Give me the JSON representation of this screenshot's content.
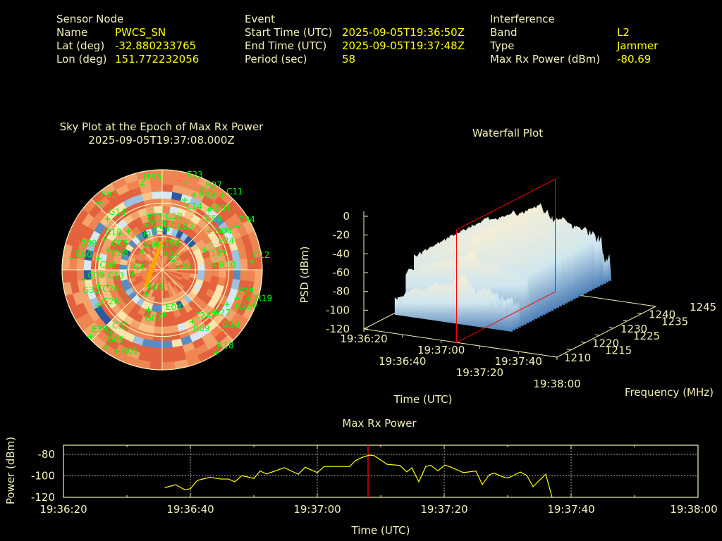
{
  "header": {
    "sensor": {
      "title": "Sensor Node",
      "name_label": "Name",
      "name": "PWCS_SN",
      "lat_label": "Lat (deg)",
      "lat": "-32.880233765",
      "lon_label": "Lon (deg)",
      "lon": "151.772232056"
    },
    "event": {
      "title": "Event",
      "start_label": "Start Time (UTC)",
      "start": "2025-09-05T19:36:50Z",
      "end_label": "End Time (UTC)",
      "end": "2025-09-05T19:37:48Z",
      "period_label": "Period (sec)",
      "period": "58"
    },
    "interference": {
      "title": "Interference",
      "band_label": "Band",
      "band": "L2",
      "type_label": "Type",
      "type": "Jammer",
      "power_label": "Max Rx Power (dBm)",
      "power": "-80.69"
    }
  },
  "colors": {
    "label": "#f4efb8",
    "value": "#ffff00",
    "satellite": "#00ff00",
    "track": "#ffa500",
    "epoch_marker": "#ff0000",
    "line": "#ffff00"
  },
  "chart_data": [
    {
      "type": "polar-heatmap",
      "title": "Sky Plot at the Epoch of Max Rx Power",
      "subtitle": "2025-09-05T19:37:08.000Z",
      "elevation_rings": [
        0,
        30,
        60
      ],
      "azimuth_lines": [
        0,
        45,
        90,
        135,
        180,
        225,
        270,
        315
      ],
      "jammer_track": [
        {
          "az": 357,
          "el": 66
        },
        {
          "az": 226,
          "el": 70
        }
      ],
      "satellites": [
        {
          "id": "J195",
          "az": 347,
          "el": 11
        },
        {
          "id": "E23",
          "az": 15,
          "el": 8
        },
        {
          "id": "R27",
          "az": 26,
          "el": 9
        },
        {
          "id": "R08",
          "az": 23,
          "el": 17
        },
        {
          "id": "C11",
          "az": 39,
          "el": 4
        },
        {
          "id": "C14",
          "az": 18,
          "el": 24
        },
        {
          "id": "E01",
          "az": 38,
          "el": 20
        },
        {
          "id": "C58",
          "az": 38,
          "el": 22
        },
        {
          "id": "G22",
          "az": 317,
          "el": 7
        },
        {
          "id": "G14",
          "az": 313,
          "el": 23
        },
        {
          "id": "E12",
          "az": 340,
          "el": 47
        },
        {
          "id": "C59",
          "az": 348,
          "el": 47
        },
        {
          "id": "C50",
          "az": 3,
          "el": 48
        },
        {
          "id": "C03",
          "az": 13,
          "el": 47
        },
        {
          "id": "G04",
          "az": 51,
          "el": 35
        },
        {
          "id": "E24",
          "az": 58,
          "el": 22
        },
        {
          "id": "C34",
          "az": 60,
          "el": 12
        },
        {
          "id": "I199",
          "az": 319,
          "el": 44
        },
        {
          "id": "C06",
          "az": 310,
          "el": 40
        },
        {
          "id": "J209",
          "az": 283,
          "el": 12
        },
        {
          "id": "C10",
          "az": 298,
          "el": 31
        },
        {
          "id": "C08",
          "az": 290,
          "el": 38
        },
        {
          "id": "C23",
          "az": 280,
          "el": 32
        },
        {
          "id": "C60",
          "az": 277,
          "el": 8
        },
        {
          "id": "C13",
          "az": 275,
          "el": 43
        },
        {
          "id": "C09",
          "az": 263,
          "el": 19
        },
        {
          "id": "C41",
          "az": 262,
          "el": 63
        },
        {
          "id": "E14",
          "az": 313,
          "el": 66
        },
        {
          "id": "J196",
          "az": 344,
          "el": 66
        },
        {
          "id": "R07",
          "az": 17,
          "el": 63
        },
        {
          "id": "G09",
          "az": 49,
          "el": 77
        },
        {
          "id": "J193",
          "az": 65,
          "el": 48
        },
        {
          "id": "R10",
          "az": 85,
          "el": 43
        },
        {
          "id": "C12",
          "az": 85,
          "el": 9
        },
        {
          "id": "R19",
          "az": 111,
          "el": 1
        },
        {
          "id": "R26",
          "az": 108,
          "el": 8
        },
        {
          "id": "E26",
          "az": 111,
          "el": 18
        },
        {
          "id": "G27",
          "az": 118,
          "el": 24
        },
        {
          "id": "C24",
          "az": 129,
          "el": 29
        },
        {
          "id": "R09",
          "az": 150,
          "el": 36
        },
        {
          "id": "G18",
          "az": 136,
          "el": 13
        },
        {
          "id": "R18",
          "az": 147,
          "el": 1
        },
        {
          "id": "E04",
          "az": 177,
          "el": 50
        },
        {
          "id": "G07",
          "az": 199,
          "el": 52
        },
        {
          "id": "R05",
          "az": 213,
          "el": 64
        },
        {
          "id": "C26",
          "az": 256,
          "el": 31
        },
        {
          "id": "G30",
          "az": 254,
          "el": 39
        },
        {
          "id": "G26",
          "az": 241,
          "el": 24
        },
        {
          "id": "E36",
          "az": 227,
          "el": 2
        },
        {
          "id": "C32",
          "az": 219,
          "el": 17
        },
        {
          "id": "G05",
          "az": 216,
          "el": 4
        },
        {
          "id": "R01",
          "az": 209,
          "el": 6
        }
      ]
    },
    {
      "type": "surface-3d",
      "title": "Waterfall Plot",
      "xlabel": "Time (UTC)",
      "ylabel": "Frequency (MHz)",
      "zlabel": "PSD (dBm)",
      "xticks": [
        "19:36:20",
        "19:36:40",
        "19:37:00",
        "19:37:20",
        "19:37:40",
        "19:38:00"
      ],
      "yticks": [
        "1210",
        "1215",
        "1220",
        "1225",
        "1230",
        "1235",
        "1240",
        "1245"
      ],
      "zticks": [
        "0",
        "-20",
        "-40",
        "-60",
        "-80",
        "-100",
        "-120"
      ],
      "zlim": [
        -120,
        0
      ],
      "epoch_plane": "19:37:08"
    },
    {
      "type": "line",
      "title": "Max Rx Power",
      "xlabel": "Time (UTC)",
      "ylabel": "Power (dBm)",
      "xticks": [
        "19:36:20",
        "19:36:40",
        "19:37:00",
        "19:37:20",
        "19:37:40",
        "19:38:00"
      ],
      "yticks": [
        "-80",
        "-100",
        "-120"
      ],
      "xlim": [
        "19:36:20",
        "19:38:00"
      ],
      "ylim": [
        -120,
        -71.5
      ],
      "grid": true,
      "epoch_marker": "19:37:08",
      "x": [
        "19:36:36",
        "19:36:37.7",
        "19:36:39.1",
        "19:36:40",
        "19:36:41.1",
        "19:36:43.1",
        "19:36:44.8",
        "19:36:46",
        "19:36:47",
        "19:36:48.1",
        "19:36:50",
        "19:36:51",
        "19:36:52",
        "19:36:54.8",
        "19:36:57",
        "19:36:58.1",
        "19:37:00",
        "19:37:01.1",
        "19:37:05.1",
        "19:37:06",
        "19:37:07.1",
        "19:37:08.2",
        "19:37:09",
        "19:37:11",
        "19:37:13",
        "19:37:14.1",
        "19:37:14.9",
        "19:37:16",
        "19:37:17.1",
        "19:37:17.9",
        "19:37:19",
        "19:37:20.1",
        "19:37:21.1",
        "19:37:23",
        "19:37:25",
        "19:37:26",
        "19:37:27.1",
        "19:37:27.9",
        "19:37:29.2",
        "19:37:30.1",
        "19:37:32",
        "19:37:33",
        "19:37:34",
        "19:37:36",
        "19:37:37"
      ],
      "y": [
        -110.9,
        -108.3,
        -112.9,
        -112,
        -104.2,
        -101.4,
        -103,
        -103,
        -105.5,
        -99.8,
        -102.4,
        -95.5,
        -98.3,
        -92.4,
        -98.5,
        -92,
        -97,
        -91.3,
        -91.3,
        -85.9,
        -82.8,
        -80.7,
        -81.3,
        -89.3,
        -90.3,
        -96.3,
        -92.6,
        -105.5,
        -91.3,
        -90.3,
        -95.3,
        -90,
        -92,
        -97,
        -95.5,
        -108.1,
        -99,
        -97.5,
        -100.9,
        -102,
        -96.5,
        -99.6,
        -110,
        -98.5,
        -121
      ]
    }
  ]
}
